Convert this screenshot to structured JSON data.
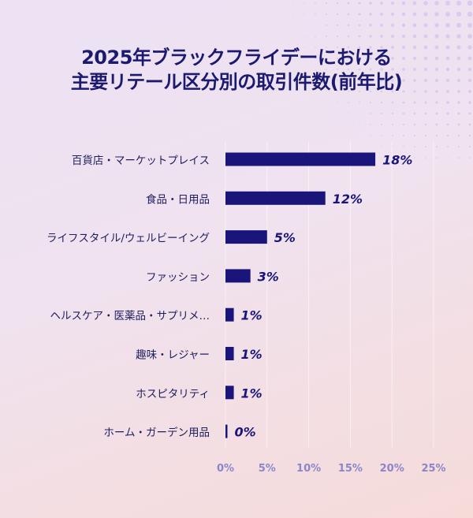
{
  "chart_data": {
    "type": "bar",
    "orientation": "horizontal",
    "title_lines": [
      "2025年ブラックフライデーにおける",
      "主要リテール区分別の取引件数(前年比)"
    ],
    "categories": [
      "百貨店・マーケットプレイス",
      "食品・日用品",
      "ライフスタイル/ウェルビーイング",
      "ファッション",
      "ヘルスケア・医薬品・サプリメ…",
      "趣味・レジャー",
      "ホスピタリティ",
      "ホーム・ガーデン用品"
    ],
    "values": [
      18,
      12,
      5,
      3,
      1,
      1,
      1,
      0
    ],
    "value_labels": [
      "18%",
      "12%",
      "5%",
      "3%",
      "1%",
      "1%",
      "1%",
      "0%"
    ],
    "xlim": [
      0,
      25
    ],
    "xticks": [
      0,
      5,
      10,
      15,
      20,
      25
    ],
    "xtick_labels": [
      "0%",
      "5%",
      "10%",
      "15%",
      "20%",
      "25%"
    ],
    "grid": "vertical",
    "legend": "none"
  },
  "colors": {
    "bar": "#19157a",
    "title": "#1b1a6e",
    "category_text": "#1e1d5e",
    "value_text": "#19157a",
    "tick_text": "#8b86c9",
    "grid": "#ffffff"
  }
}
